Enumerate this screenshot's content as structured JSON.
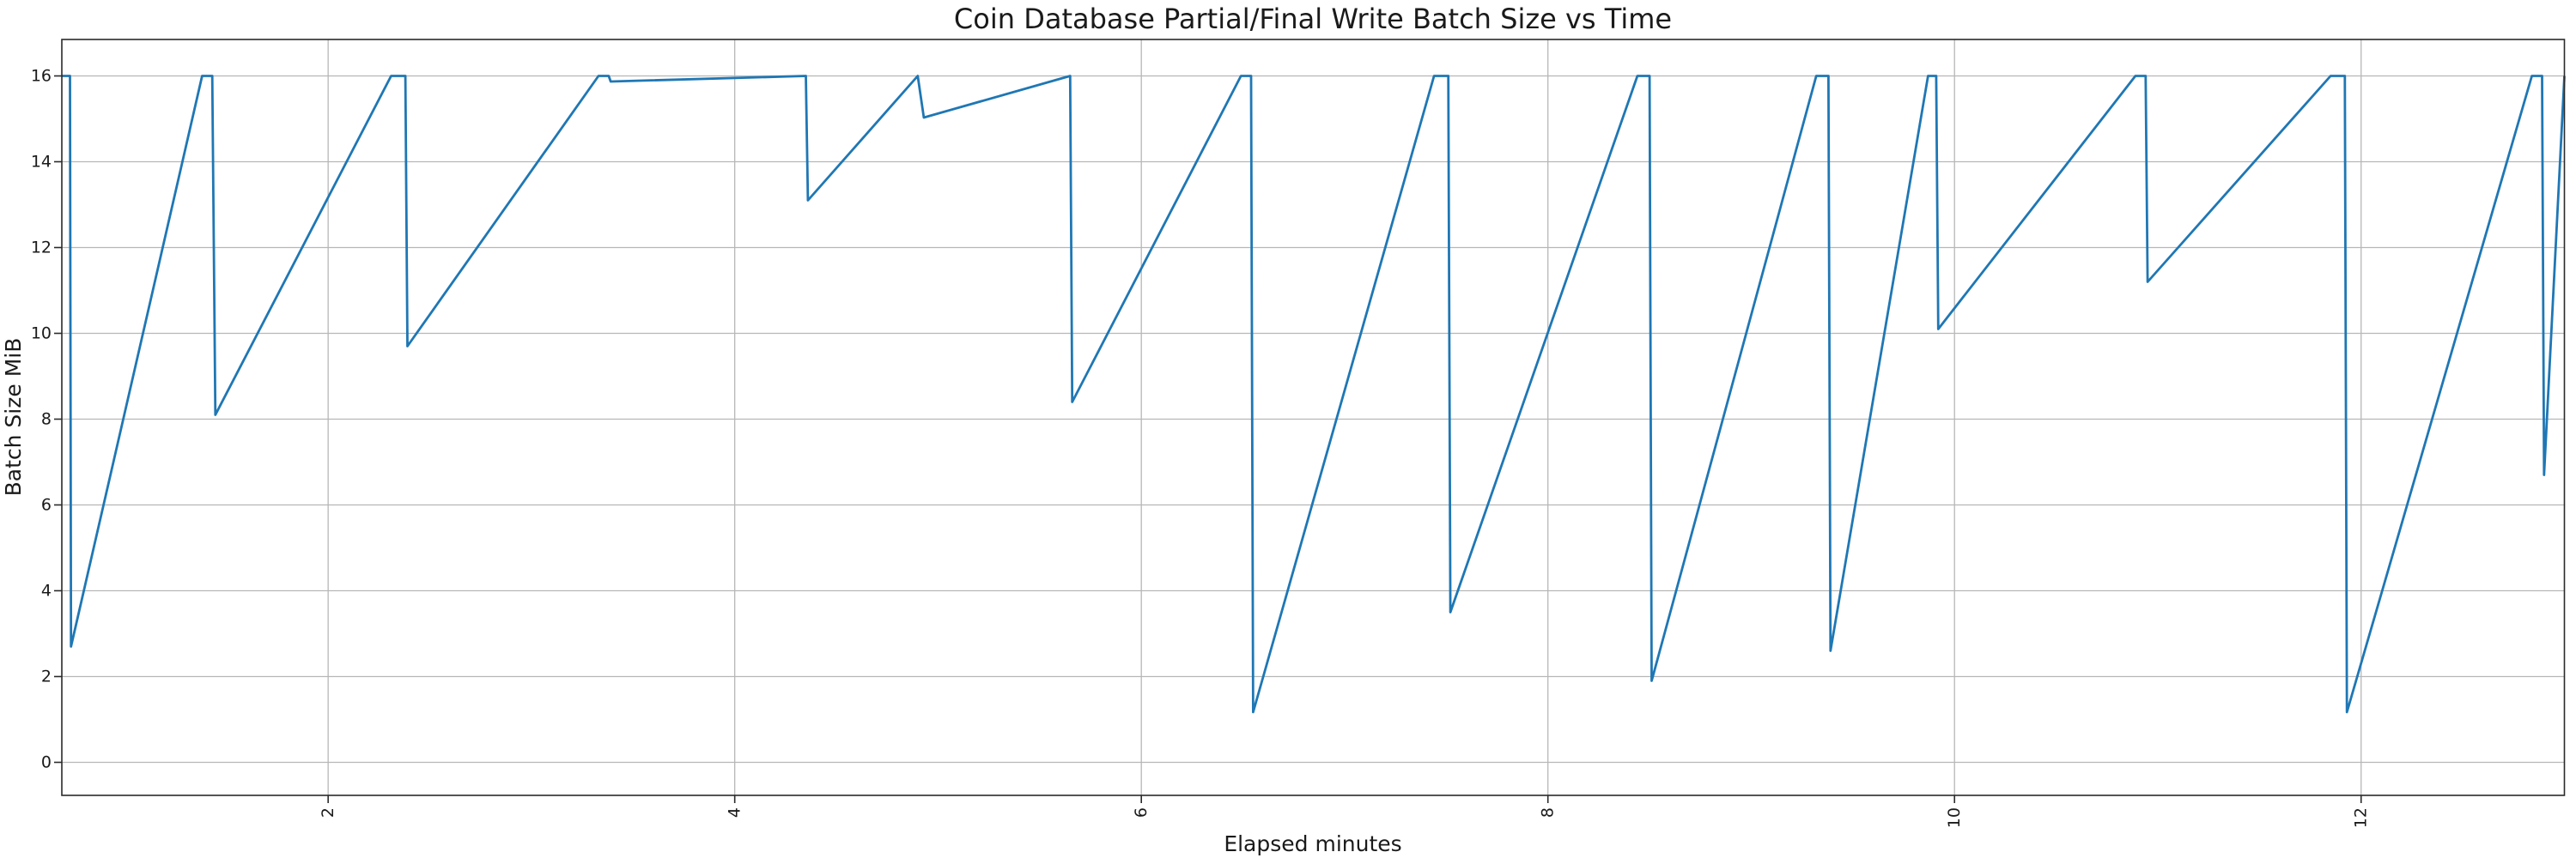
{
  "chart_data": {
    "type": "line",
    "title": "Coin Database Partial/Final Write Batch Size vs Time",
    "xlabel": "Elapsed minutes",
    "ylabel": "Batch Size MiB",
    "x_ticks": [
      2,
      4,
      6,
      8,
      10,
      12
    ],
    "y_ticks": [
      0,
      2,
      4,
      6,
      8,
      10,
      12,
      14,
      16
    ],
    "xlim": [
      0.69,
      13.0
    ],
    "ylim": [
      -0.77,
      16.85
    ],
    "x_tick_rotation_deg": 90,
    "grid": true,
    "legend_position": "none",
    "line_color": "#1f77b4",
    "grid_color": "#b7b7b7",
    "spine_color": "#2a2a2a",
    "text_color": "#1a1a1a",
    "series": [
      {
        "name": "Batch Size MiB",
        "points": [
          [
            0.69,
            16
          ],
          [
            0.73,
            16
          ],
          [
            0.735,
            2.7
          ],
          [
            1.38,
            16
          ],
          [
            1.43,
            16
          ],
          [
            1.445,
            8.1
          ],
          [
            2.31,
            16
          ],
          [
            2.38,
            16
          ],
          [
            2.39,
            9.7
          ],
          [
            3.33,
            16
          ],
          [
            3.38,
            16
          ],
          [
            3.39,
            15.87
          ],
          [
            4.35,
            16
          ],
          [
            4.36,
            13.1
          ],
          [
            4.9,
            16
          ],
          [
            4.93,
            15.03
          ],
          [
            5.65,
            16
          ],
          [
            5.66,
            8.4
          ],
          [
            6.49,
            16
          ],
          [
            6.54,
            16
          ],
          [
            6.55,
            1.17
          ],
          [
            7.44,
            16
          ],
          [
            7.51,
            16
          ],
          [
            7.52,
            3.5
          ],
          [
            8.44,
            16
          ],
          [
            8.5,
            16
          ],
          [
            8.51,
            1.9
          ],
          [
            9.32,
            16
          ],
          [
            9.38,
            16
          ],
          [
            9.39,
            2.6
          ],
          [
            9.87,
            16
          ],
          [
            9.91,
            16
          ],
          [
            9.92,
            10.1
          ],
          [
            10.89,
            16
          ],
          [
            10.94,
            16
          ],
          [
            10.95,
            11.2
          ],
          [
            11.85,
            16
          ],
          [
            11.92,
            16
          ],
          [
            11.93,
            1.17
          ],
          [
            12.84,
            16
          ],
          [
            12.89,
            16
          ],
          [
            12.9,
            6.7
          ],
          [
            13.0,
            16
          ]
        ]
      }
    ]
  }
}
